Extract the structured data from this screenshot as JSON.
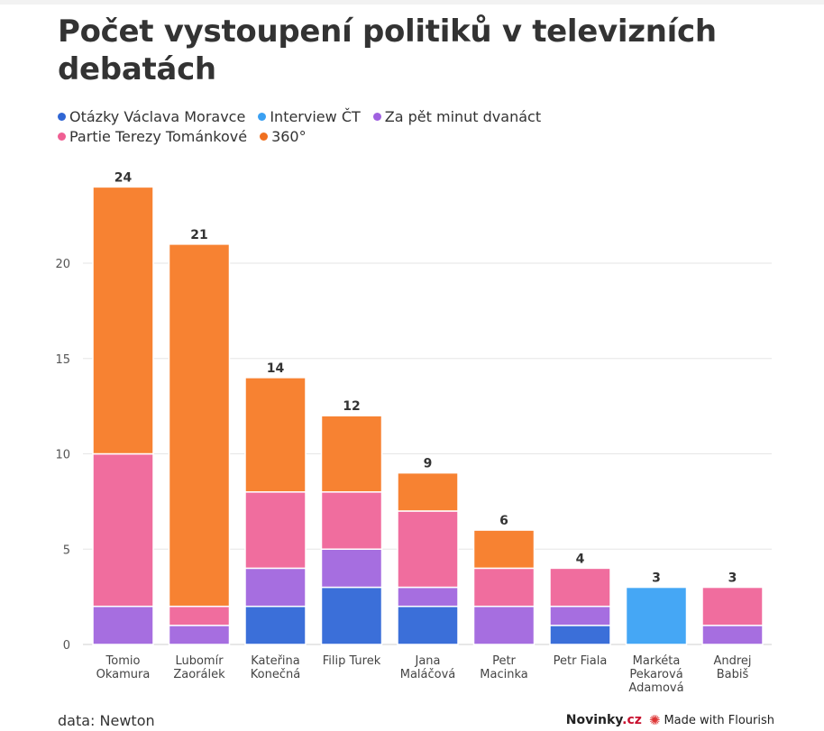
{
  "chart_data": {
    "type": "bar",
    "stacked": true,
    "title": "Počet vystoupení politiků v televizních debatách",
    "categories": [
      [
        "Tomio",
        "Okamura"
      ],
      [
        "Lubomír",
        "Zaorálek"
      ],
      [
        "Kateřina",
        "Konečná"
      ],
      [
        "Filip Turek"
      ],
      [
        "Jana",
        "Maláčová"
      ],
      [
        "Petr",
        "Macinka"
      ],
      [
        "Petr Fiala"
      ],
      [
        "Markéta",
        "Pekarová",
        "Adamová"
      ],
      [
        "Andrej",
        "Babiš"
      ]
    ],
    "series": [
      {
        "name": "Otázky Václava Moravce",
        "color": "#3b6fd9",
        "values": [
          0,
          0,
          2,
          3,
          2,
          0,
          1,
          0,
          0
        ]
      },
      {
        "name": "Interview ČT",
        "color": "#45a7f5",
        "values": [
          0,
          0,
          0,
          0,
          0,
          0,
          0,
          3,
          0
        ]
      },
      {
        "name": "Za pět minut dvanáct",
        "color": "#a66ee0",
        "values": [
          2,
          1,
          2,
          2,
          1,
          2,
          1,
          0,
          1
        ]
      },
      {
        "name": "Partie Terezy Tománkové",
        "color": "#f06d9e",
        "values": [
          8,
          1,
          4,
          3,
          4,
          2,
          2,
          0,
          2
        ]
      },
      {
        "name": "360°",
        "color": "#f78232",
        "values": [
          14,
          19,
          6,
          4,
          2,
          2,
          0,
          0,
          0
        ]
      }
    ],
    "totals": [
      "24",
      "21",
      "14",
      "12",
      "9",
      "6",
      "4",
      "3",
      "3"
    ],
    "y_ticks": [
      "0",
      "5",
      "10",
      "15",
      "20"
    ],
    "ylim": [
      0,
      24
    ],
    "grid": true,
    "legend_position": "top"
  },
  "legend_rows": [
    [
      {
        "label": "Otázky Václava Moravce",
        "color": "#2f66d4"
      },
      {
        "label": "Interview ČT",
        "color": "#3aa0f2"
      },
      {
        "label": "Za pět minut dvanáct",
        "color": "#a061e0"
      }
    ],
    [
      {
        "label": "Partie Terezy Tománkové",
        "color": "#ef5f93"
      },
      {
        "label": "360°",
        "color": "#f07020"
      }
    ]
  ],
  "footer": {
    "source": "data: Newton",
    "brand_main": "Novinky",
    "brand_suffix": ".cz",
    "flourish": "Made with Flourish"
  }
}
